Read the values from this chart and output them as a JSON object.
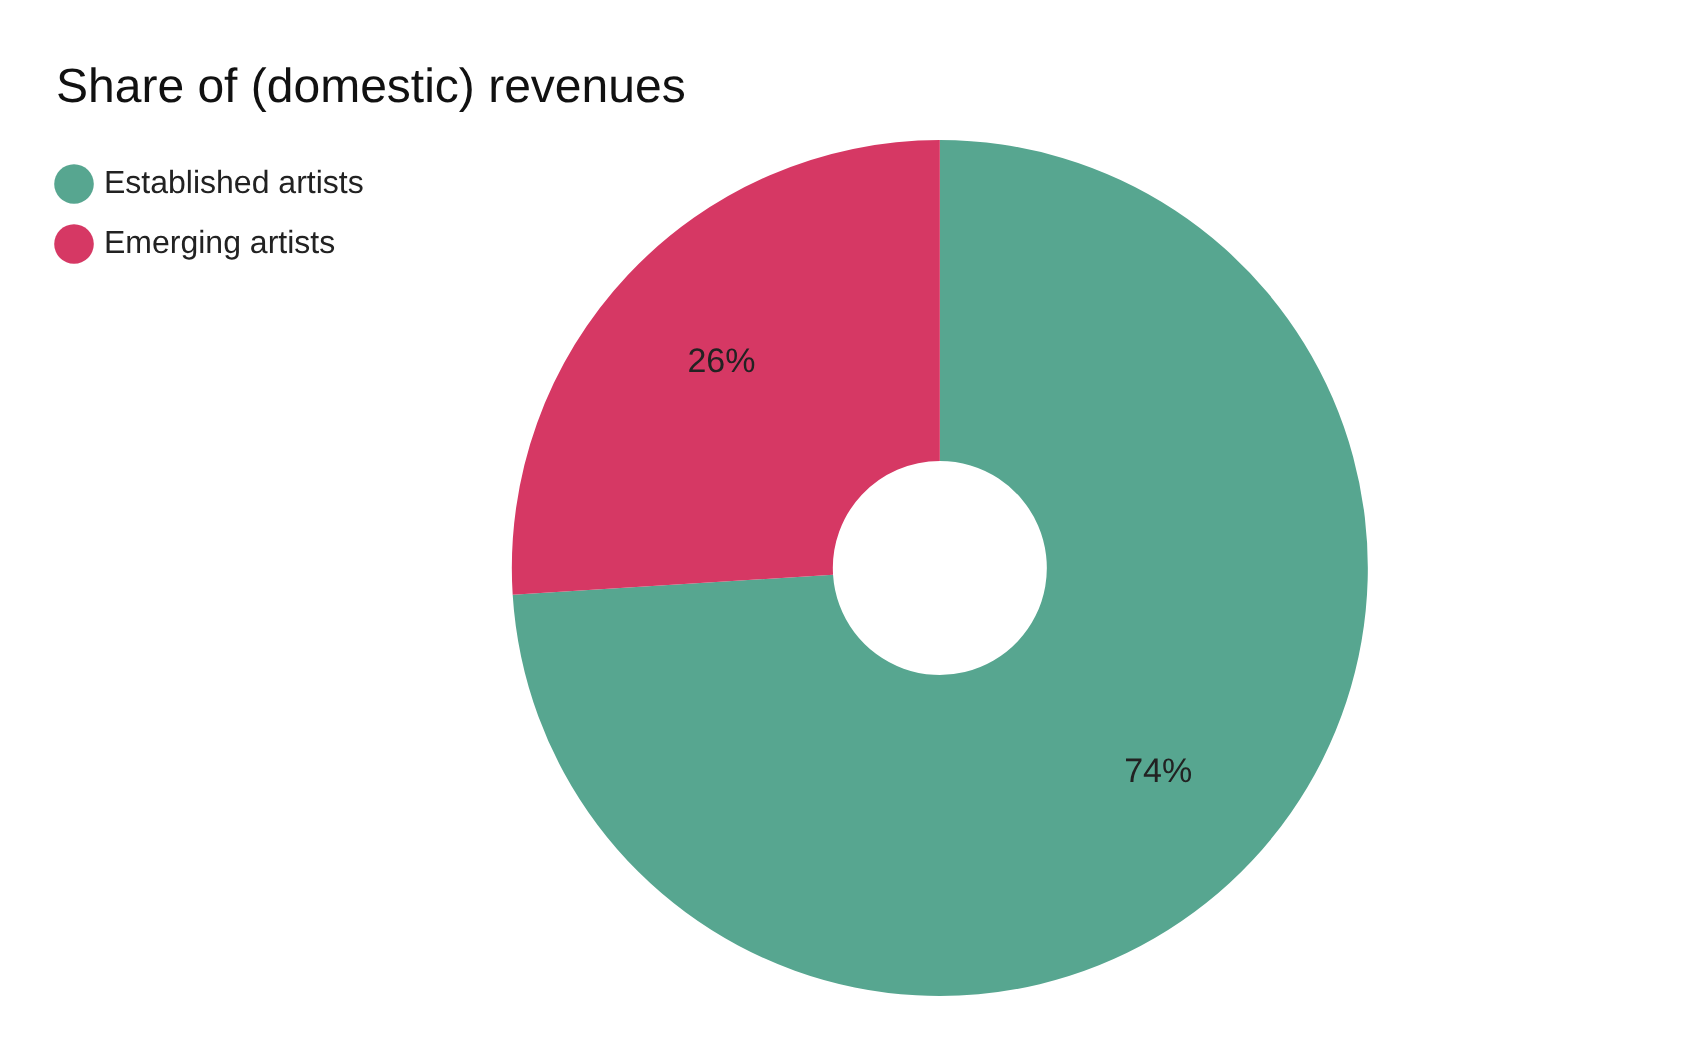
{
  "chart_data": {
    "type": "donut",
    "title": "Share of (domestic) revenues",
    "categories": [
      "Established artists",
      "Emerging artists"
    ],
    "values": [
      74,
      26
    ],
    "colors": [
      "#57a690",
      "#d63864"
    ],
    "value_labels": [
      "74%",
      "26%"
    ],
    "legend": "top left"
  }
}
